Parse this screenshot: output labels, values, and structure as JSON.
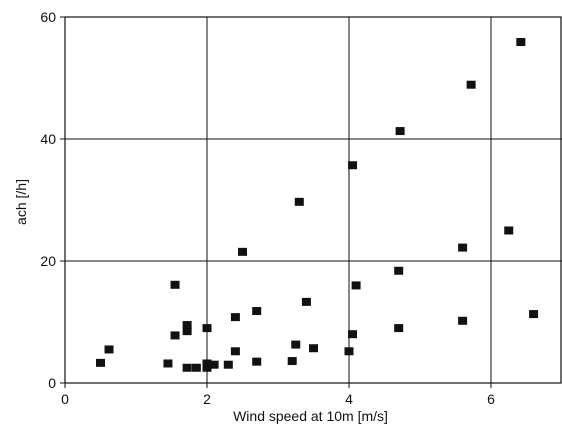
{
  "chart_data": {
    "type": "scatter",
    "title": "",
    "xlabel": "Wind speed at 10m [m/s]",
    "ylabel": "ach [/h]",
    "xlim": [
      0,
      7
    ],
    "ylim": [
      0,
      60
    ],
    "x_ticks": [
      0,
      2,
      4,
      6
    ],
    "y_ticks": [
      0,
      20,
      40,
      60
    ],
    "grid": true,
    "points": [
      {
        "x": 0.5,
        "y": 3.3
      },
      {
        "x": 0.62,
        "y": 5.5
      },
      {
        "x": 1.45,
        "y": 3.2
      },
      {
        "x": 1.55,
        "y": 7.8
      },
      {
        "x": 1.55,
        "y": 16.1
      },
      {
        "x": 1.72,
        "y": 2.5
      },
      {
        "x": 1.72,
        "y": 8.5
      },
      {
        "x": 1.72,
        "y": 9.5
      },
      {
        "x": 1.85,
        "y": 2.5
      },
      {
        "x": 2.0,
        "y": 2.5
      },
      {
        "x": 2.0,
        "y": 3.2
      },
      {
        "x": 2.0,
        "y": 9.0
      },
      {
        "x": 2.1,
        "y": 3.0
      },
      {
        "x": 2.3,
        "y": 3.0
      },
      {
        "x": 2.4,
        "y": 5.2
      },
      {
        "x": 2.4,
        "y": 10.8
      },
      {
        "x": 2.5,
        "y": 21.5
      },
      {
        "x": 2.7,
        "y": 3.5
      },
      {
        "x": 2.7,
        "y": 11.8
      },
      {
        "x": 3.2,
        "y": 3.6
      },
      {
        "x": 3.25,
        "y": 6.3
      },
      {
        "x": 3.3,
        "y": 29.7
      },
      {
        "x": 3.4,
        "y": 13.3
      },
      {
        "x": 3.5,
        "y": 5.7
      },
      {
        "x": 4.0,
        "y": 5.2
      },
      {
        "x": 4.05,
        "y": 8.0
      },
      {
        "x": 4.05,
        "y": 35.7
      },
      {
        "x": 4.1,
        "y": 16.0
      },
      {
        "x": 4.7,
        "y": 9.0
      },
      {
        "x": 4.7,
        "y": 18.4
      },
      {
        "x": 4.72,
        "y": 41.3
      },
      {
        "x": 5.6,
        "y": 10.2
      },
      {
        "x": 5.6,
        "y": 22.2
      },
      {
        "x": 5.72,
        "y": 48.9
      },
      {
        "x": 6.25,
        "y": 25.0
      },
      {
        "x": 6.42,
        "y": 55.9
      },
      {
        "x": 6.6,
        "y": 11.3
      }
    ]
  }
}
